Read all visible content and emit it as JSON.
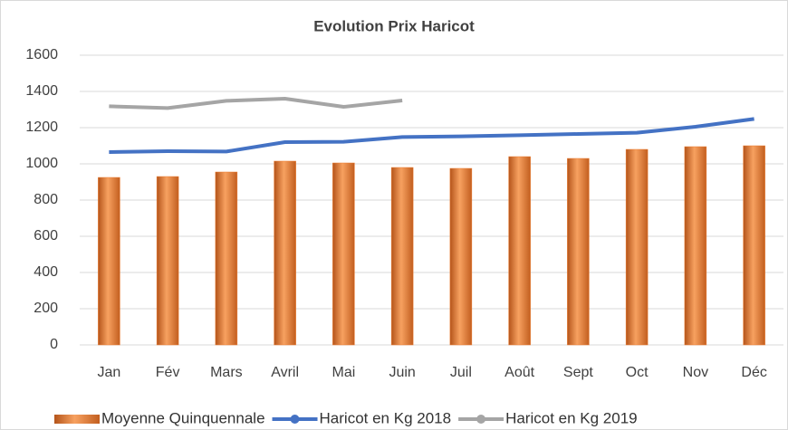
{
  "chart_data": {
    "type": "bar",
    "title": "Evolution Prix Haricot",
    "categories": [
      "Jan",
      "Fév",
      "Mars",
      "Avril",
      "Mai",
      "Juin",
      "Juil",
      "Août",
      "Sept",
      "Oct",
      "Nov",
      "Déc"
    ],
    "series": [
      {
        "name": "Moyenne Quinquennale",
        "type": "bar",
        "color": "#ed7d31",
        "values": [
          925,
          930,
          955,
          1015,
          1005,
          980,
          975,
          1040,
          1030,
          1080,
          1095,
          1100
        ]
      },
      {
        "name": "Haricot en Kg 2018",
        "type": "line",
        "color": "#4472c4",
        "values": [
          1065,
          1070,
          1068,
          1120,
          1122,
          1148,
          1152,
          1158,
          1165,
          1172,
          1205,
          1248
        ]
      },
      {
        "name": "Haricot en Kg 2019",
        "type": "line",
        "color": "#a5a5a5",
        "values": [
          1318,
          1308,
          1348,
          1360,
          1315,
          1350,
          null,
          null,
          null,
          null,
          null,
          null
        ]
      }
    ],
    "ylim": [
      0,
      1600
    ],
    "yticks": [
      0,
      200,
      400,
      600,
      800,
      1000,
      1200,
      1400,
      1600
    ],
    "grid": true,
    "legend": "bottom"
  }
}
